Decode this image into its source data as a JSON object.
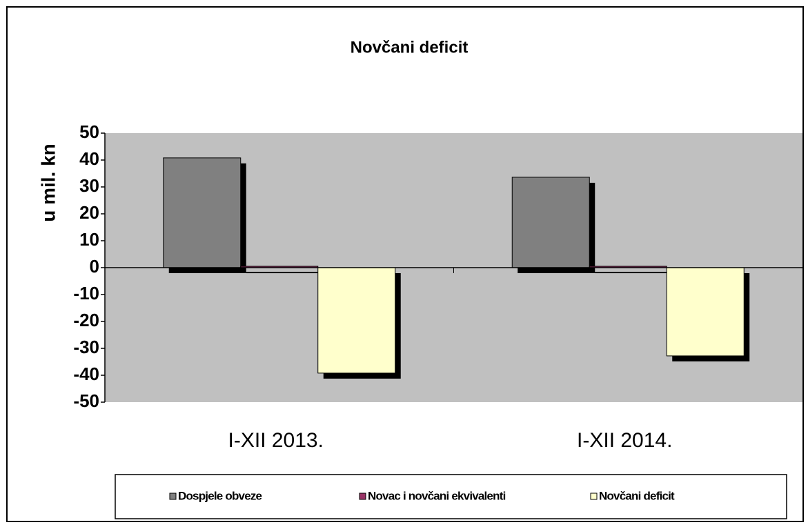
{
  "chart_data": {
    "type": "bar",
    "title": "Novčani deficit",
    "y_label": "u mil. kn",
    "categories": [
      "I-XII 2013.",
      "I-XII 2014."
    ],
    "series": [
      {
        "name": "Dospjele obveze",
        "color": "#808080",
        "values": [
          40.8,
          33.6
        ]
      },
      {
        "name": "Novac i novčani ekvivalenti",
        "color": "#993366",
        "values": [
          0.5,
          0.5
        ]
      },
      {
        "name": "Novčani deficit",
        "color": "#ffffcc",
        "values": [
          -39.2,
          -32.8
        ]
      }
    ],
    "ylim": [
      -50,
      50
    ],
    "yticks": [
      -50,
      -40,
      -30,
      -20,
      -10,
      0,
      10,
      20,
      30,
      40,
      50
    ],
    "legend": "bottom",
    "plot_background": "#c0c0c0"
  }
}
